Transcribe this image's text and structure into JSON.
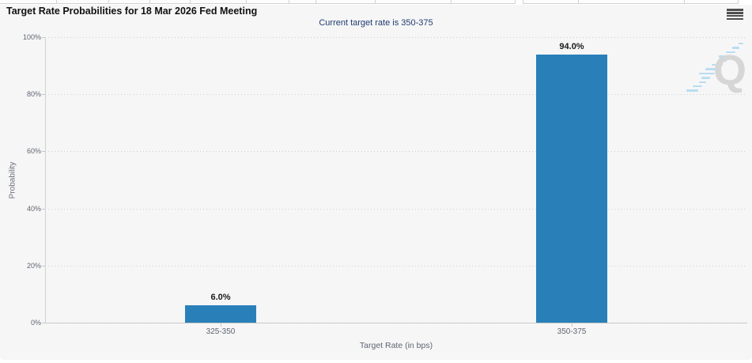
{
  "header": {
    "title": "Target Rate Probabilities for 18 Mar 2026 Fed Meeting",
    "subtitle": "Current target rate is 350-375",
    "menu_icon": "hamburger-menu-icon"
  },
  "colors": {
    "bar": "#2980b9",
    "subtitle_text": "#1e3c6e",
    "panel_background": "#f6f6f7",
    "axis_line": "#c6c6c6",
    "gridline": "#cfcfcf",
    "muted_text": "#5f6670",
    "watermark_dash": "#b9ddf1",
    "watermark_letter": "#d6d6d6"
  },
  "watermark": {
    "letter": "Q"
  },
  "chart_data": {
    "type": "bar",
    "title": "Target Rate Probabilities for 18 Mar 2026 Fed Meeting",
    "subtitle": "Current target rate is 350-375",
    "categories": [
      "325-350",
      "350-375"
    ],
    "values": [
      6.0,
      94.0
    ],
    "value_labels": [
      "6.0%",
      "94.0%"
    ],
    "xlabel": "Target Rate (in bps)",
    "ylabel": "Probability",
    "ylim": [
      0,
      100
    ],
    "ytick_labels": [
      "0%",
      "20%",
      "40%",
      "60%",
      "80%",
      "100%"
    ],
    "grid": "horizontal dotted gridlines every 20%",
    "legend": "none",
    "bar_color": "#2980b9"
  }
}
